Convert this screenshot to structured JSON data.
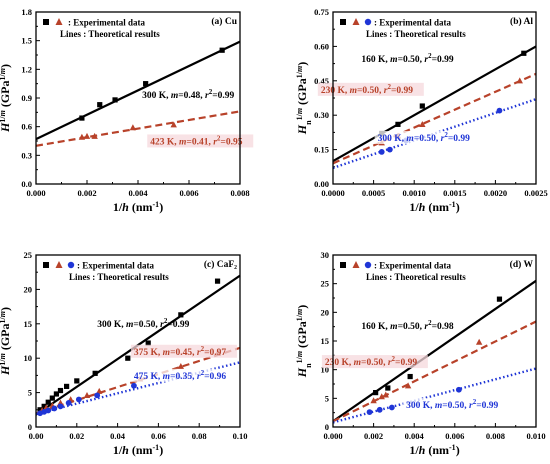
{
  "chart_data": [
    {
      "type": "scatter",
      "panel_label": "(a) Cu",
      "legend": {
        "exp": ": Experimental data",
        "lines": "Lines  : Theoretical results"
      },
      "xlabel_main": "1/",
      "xlabel_ital": "h",
      "xlabel_unit": " (nm",
      "xlabel_sup": "-1",
      "xlabel_end": ")",
      "ylabel": "H1/m (GPa1/m)",
      "xlim": [
        0,
        0.008
      ],
      "ylim": [
        0,
        1.8
      ],
      "xticks": [
        "0.000",
        "0.002",
        "0.004",
        "0.006",
        "0.008"
      ],
      "yticks": [
        "0.0",
        "0.3",
        "0.6",
        "0.9",
        "1.2",
        "1.5",
        "1.8"
      ],
      "series": [
        {
          "label": "300 K, m=0.48, r²=0.99",
          "color": "#000000",
          "marker": "square",
          "line": "solid",
          "fit": [
            [
              0,
              0.47
            ],
            [
              0.008,
              1.49
            ]
          ],
          "points": [
            [
              0.0018,
              0.69
            ],
            [
              0.0025,
              0.83
            ],
            [
              0.0031,
              0.88
            ],
            [
              0.0043,
              1.05
            ],
            [
              0.0073,
              1.4
            ]
          ]
        },
        {
          "label": "423 K, m=0.41, r²=0.95",
          "color": "#b8422a",
          "marker": "triangle",
          "line": "dashed",
          "fit": [
            [
              0,
              0.4
            ],
            [
              0.008,
              0.76
            ]
          ],
          "points": [
            [
              0.0018,
              0.49
            ],
            [
              0.002,
              0.5
            ],
            [
              0.0023,
              0.5
            ],
            [
              0.0038,
              0.59
            ],
            [
              0.0054,
              0.62
            ]
          ]
        }
      ]
    },
    {
      "type": "scatter",
      "panel_label": "(b) Al",
      "legend": {
        "exp": ": Experimental data",
        "lines": "Lines  : Theoretical results"
      },
      "xlim": [
        0,
        0.0025
      ],
      "ylim": [
        0,
        0.75
      ],
      "xticks": [
        "0.0000",
        "0.0005",
        "0.0010",
        "0.0015",
        "0.0020",
        "0.0025"
      ],
      "yticks": [
        "0.00",
        "0.15",
        "0.30",
        "0.45",
        "0.60",
        "0.75"
      ],
      "series": [
        {
          "label": "160 K, m=0.50, r²=0.99",
          "color": "#000000",
          "marker": "square",
          "line": "solid",
          "fit": [
            [
              0,
              0.1
            ],
            [
              0.0025,
              0.6
            ]
          ],
          "points": [
            [
              0.0006,
              0.22
            ],
            [
              0.0008,
              0.26
            ],
            [
              0.0011,
              0.34
            ],
            [
              0.00235,
              0.57
            ]
          ]
        },
        {
          "label": "230 K, m=0.50, r²=0.99",
          "color": "#b8422a",
          "marker": "triangle",
          "line": "dashed",
          "fit": [
            [
              0,
              0.09
            ],
            [
              0.0025,
              0.48
            ]
          ],
          "points": [
            [
              0.0006,
              0.18
            ],
            [
              0.0008,
              0.21
            ],
            [
              0.0011,
              0.26
            ],
            [
              0.0023,
              0.45
            ]
          ]
        },
        {
          "label": "300 K, m=0.50, r²=0.99",
          "color": "#1f35d6",
          "marker": "circle",
          "line": "dotted",
          "fit": [
            [
              0,
              0.07
            ],
            [
              0.0025,
              0.37
            ]
          ],
          "points": [
            [
              0.0006,
              0.14
            ],
            [
              0.0007,
              0.15
            ],
            [
              0.0009,
              0.19
            ],
            [
              0.00205,
              0.32
            ]
          ]
        }
      ]
    },
    {
      "type": "scatter",
      "panel_label": "(c) CaF₂",
      "legend": {
        "exp": ": Experimental data",
        "lines": "Lines  : Theoretical results"
      },
      "xlim": [
        0,
        0.1
      ],
      "ylim": [
        0,
        25
      ],
      "xticks": [
        "0.00",
        "0.02",
        "0.04",
        "0.06",
        "0.08",
        "0.10"
      ],
      "yticks": [
        "0",
        "5",
        "10",
        "15",
        "20",
        "25"
      ],
      "series": [
        {
          "label": "300 K, m=0.50, r²=0.99",
          "color": "#000000",
          "marker": "square",
          "line": "solid",
          "fit": [
            [
              0,
              1.8
            ],
            [
              0.1,
              22.0
            ]
          ],
          "points": [
            [
              0.002,
              2.5
            ],
            [
              0.004,
              3.0
            ],
            [
              0.006,
              3.6
            ],
            [
              0.008,
              4.2
            ],
            [
              0.01,
              4.8
            ],
            [
              0.012,
              5.3
            ],
            [
              0.015,
              5.9
            ],
            [
              0.02,
              6.7
            ],
            [
              0.029,
              7.8
            ],
            [
              0.045,
              10.0
            ],
            [
              0.055,
              12.2
            ],
            [
              0.071,
              16.3
            ],
            [
              0.089,
              21.2
            ]
          ]
        },
        {
          "label": "375 K, m=0.45, r²=0.97",
          "color": "#b8422a",
          "marker": "triangle",
          "line": "dashed",
          "fit": [
            [
              0,
              2.0
            ],
            [
              0.1,
              11.5
            ]
          ],
          "points": [
            [
              0.003,
              2.4
            ],
            [
              0.005,
              2.8
            ],
            [
              0.008,
              3.1
            ],
            [
              0.012,
              3.5
            ],
            [
              0.017,
              4.0
            ],
            [
              0.025,
              4.6
            ],
            [
              0.031,
              5.2
            ],
            [
              0.051,
              7.0
            ],
            [
              0.071,
              8.8
            ],
            [
              0.089,
              10.7
            ]
          ]
        },
        {
          "label": "475 K, m=0.35, r²=0.96",
          "color": "#1f35d6",
          "marker": "circle",
          "line": "dotted",
          "fit": [
            [
              0,
              1.9
            ],
            [
              0.1,
              9.4
            ]
          ],
          "points": [
            [
              0.002,
              2.0
            ],
            [
              0.004,
              2.2
            ],
            [
              0.006,
              2.4
            ],
            [
              0.009,
              2.7
            ],
            [
              0.012,
              3.0
            ],
            [
              0.016,
              3.5
            ],
            [
              0.021,
              4.0
            ],
            [
              0.03,
              4.6
            ],
            [
              0.048,
              6.0
            ]
          ]
        }
      ]
    },
    {
      "type": "scatter",
      "panel_label": "(d) W",
      "legend": {
        "exp": ": Experimental data",
        "lines": "Lines  : Theoretical results"
      },
      "xlim": [
        0,
        0.01
      ],
      "ylim": [
        0,
        30
      ],
      "xticks": [
        "0.000",
        "0.002",
        "0.004",
        "0.006",
        "0.008",
        "0.010"
      ],
      "yticks": [
        "0",
        "5",
        "10",
        "15",
        "20",
        "25",
        "30"
      ],
      "series": [
        {
          "label": "160 K, m=0.50, r²=0.98",
          "color": "#000000",
          "marker": "square",
          "line": "solid",
          "fit": [
            [
              0,
              1.0
            ],
            [
              0.01,
              25.5
            ]
          ],
          "points": [
            [
              0.0021,
              6.0
            ],
            [
              0.0027,
              6.8
            ],
            [
              0.0038,
              8.8
            ],
            [
              0.0082,
              22.3
            ]
          ]
        },
        {
          "label": "230 K, m=0.50, r²=0.99",
          "color": "#b8422a",
          "marker": "triangle",
          "line": "dashed",
          "fit": [
            [
              0,
              1.0
            ],
            [
              0.01,
              18.4
            ]
          ],
          "points": [
            [
              0.002,
              4.6
            ],
            [
              0.0024,
              5.3
            ],
            [
              0.0026,
              5.6
            ],
            [
              0.0037,
              7.2
            ],
            [
              0.0072,
              14.8
            ]
          ]
        },
        {
          "label": "300 K, m=0.50, r²=0.99",
          "color": "#1f35d6",
          "marker": "circle",
          "line": "dotted",
          "fit": [
            [
              0,
              0.8
            ],
            [
              0.01,
              10.2
            ]
          ],
          "points": [
            [
              0.0018,
              2.6
            ],
            [
              0.0023,
              3.0
            ],
            [
              0.0029,
              3.4
            ],
            [
              0.0062,
              6.5
            ]
          ]
        }
      ]
    }
  ]
}
